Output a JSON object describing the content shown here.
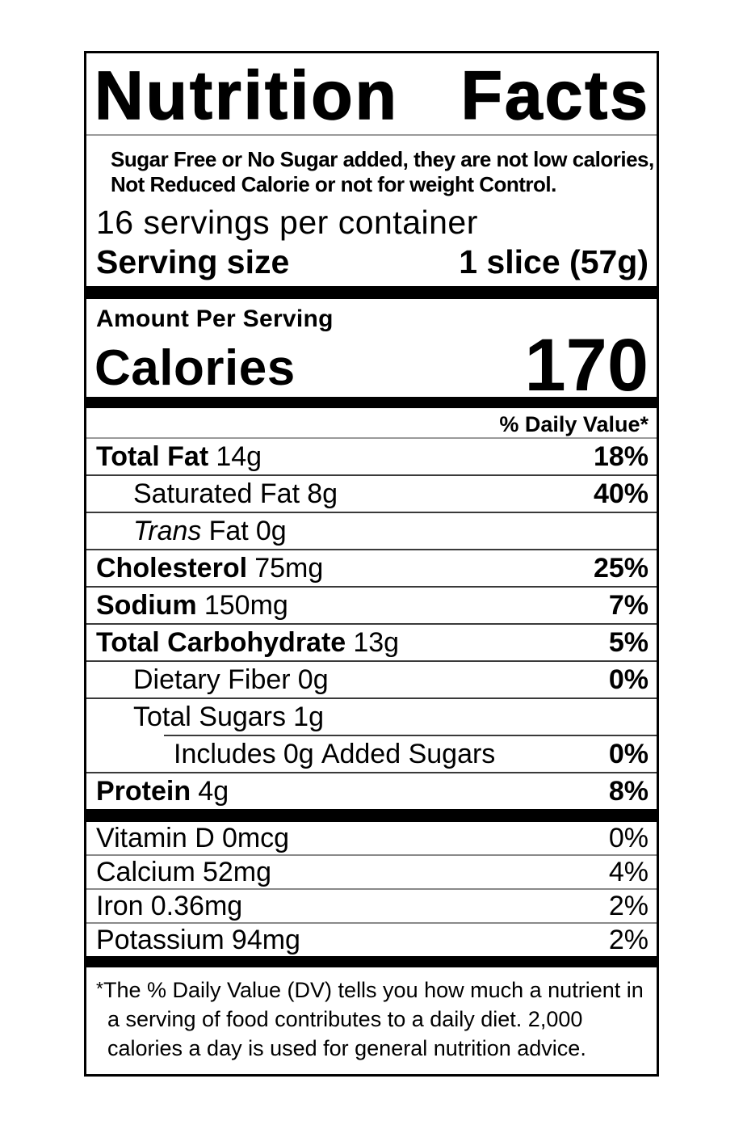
{
  "label": {
    "title_word_1": "Nutrition",
    "title_word_2": "Facts",
    "statement_line_1": "Sugar Free or No Sugar added, they are not low calories,",
    "statement_line_2": "Not Reduced Calorie or not for weight Control.",
    "servings_per_container": "16 servings per container",
    "serving_size_label": "Serving size",
    "serving_size_value": "1 slice (57g)",
    "amount_per_serving": "Amount Per Serving",
    "calories_label": "Calories",
    "calories_value": "170",
    "daily_value_header": "% Daily Value*",
    "nutrients": [
      {
        "name": "Total Fat",
        "amount": "14g",
        "dv": "18%"
      },
      {
        "name": "Saturated Fat",
        "amount": "8g",
        "dv": "40%"
      },
      {
        "name": "Trans",
        "rest": "Fat",
        "amount": "0g",
        "dv": ""
      },
      {
        "name": "Cholesterol",
        "amount": "75mg",
        "dv": "25%"
      },
      {
        "name": "Sodium",
        "amount": "150mg",
        "dv": "7%"
      },
      {
        "name": "Total Carbohydrate",
        "amount": "13g",
        "dv": "5%"
      },
      {
        "name": "Dietary Fiber",
        "amount": "0g",
        "dv": "0%"
      },
      {
        "name": "Total Sugars",
        "amount": "1g",
        "dv": ""
      },
      {
        "name": "Includes",
        "amount": "0g",
        "rest": "Added Sugars",
        "dv": "0%"
      },
      {
        "name": "Protein",
        "amount": "4g",
        "dv": "8%"
      }
    ],
    "vitamins": [
      {
        "name": "Vitamin D",
        "amount": "0mcg",
        "dv": "0%"
      },
      {
        "name": "Calcium",
        "amount": "52mg",
        "dv": "4%"
      },
      {
        "name": "Iron",
        "amount": "0.36mg",
        "dv": "2%"
      },
      {
        "name": "Potassium",
        "amount": "94mg",
        "dv": "2%"
      }
    ],
    "footnote_marker": "*",
    "footnote_text": "The % Daily Value (DV) tells you how much a nutrient in a serving of food contributes to a daily diet. 2,000 calories a day is used for general nutrition advice."
  }
}
